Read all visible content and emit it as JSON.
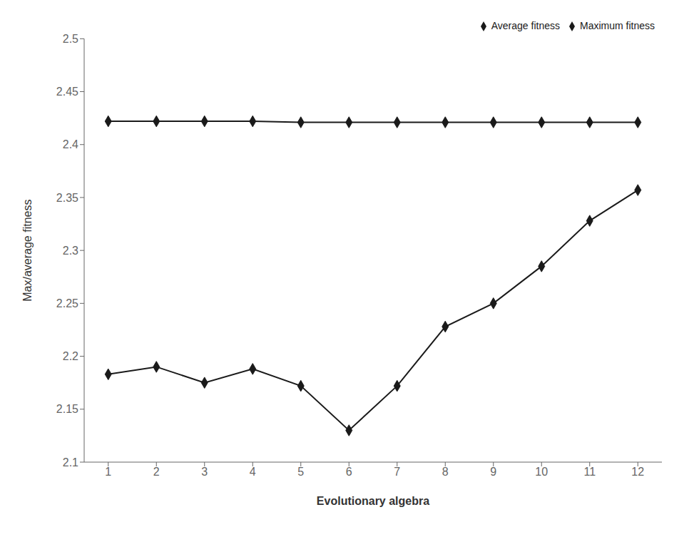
{
  "chart_data": {
    "type": "line",
    "x": [
      1,
      2,
      3,
      4,
      5,
      6,
      7,
      8,
      9,
      10,
      11,
      12
    ],
    "series": [
      {
        "name": "Maximum fitness",
        "color": "#1a1a1a",
        "marker": "diamond",
        "values": [
          2.183,
          2.19,
          2.175,
          2.188,
          2.172,
          2.13,
          2.172,
          2.228,
          2.25,
          2.285,
          2.328,
          2.357
        ]
      },
      {
        "name": "Average fitness",
        "color": "#1a1a1a",
        "marker": "diamond",
        "values": [
          2.422,
          2.422,
          2.422,
          2.422,
          2.421,
          2.421,
          2.421,
          2.421,
          2.421,
          2.421,
          2.421,
          2.421
        ]
      }
    ],
    "xlabel": "Evolutionary algebra",
    "ylabel": "Max/average fitness",
    "xlim": [
      0.5,
      12.5
    ],
    "xticks": [
      1,
      2,
      3,
      4,
      5,
      6,
      7,
      8,
      9,
      10,
      11,
      12
    ],
    "ylim": [
      2.1,
      2.5
    ],
    "yticks": [
      2.1,
      2.15,
      2.2,
      2.25,
      2.3,
      2.35,
      2.4,
      2.45,
      2.5
    ],
    "grid": false,
    "legend": "upper right"
  }
}
